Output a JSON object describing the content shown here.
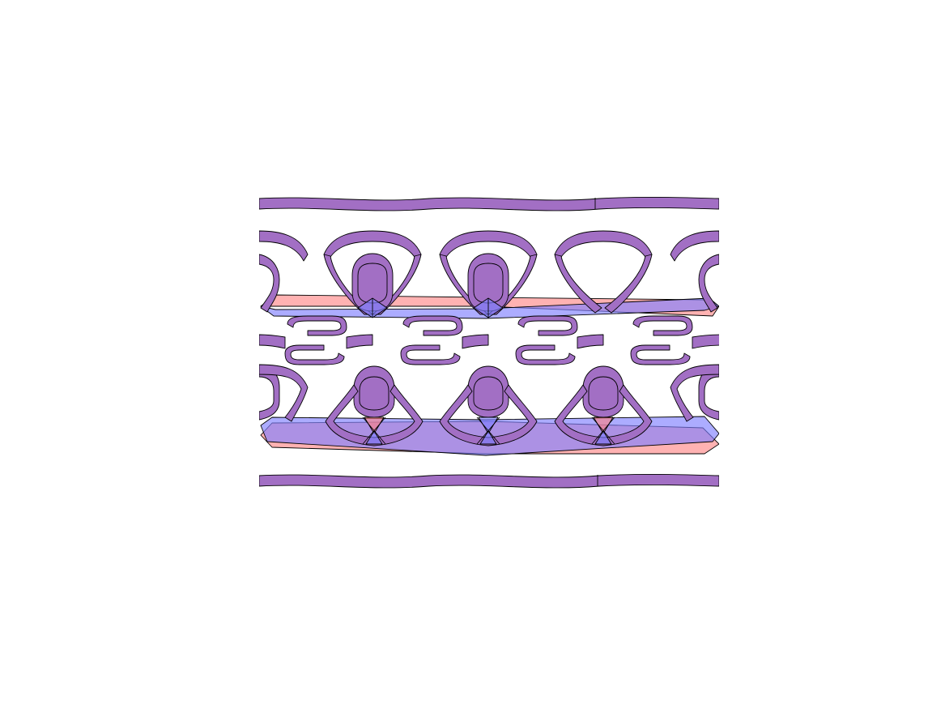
{
  "figure": {
    "description_free": true,
    "colors": {
      "purple": "#a26fc4",
      "red": "#ff7f7f",
      "blue": "#7f7fff",
      "outline": "#000000",
      "background": "#ffffff"
    },
    "repeat_count": 4
  }
}
